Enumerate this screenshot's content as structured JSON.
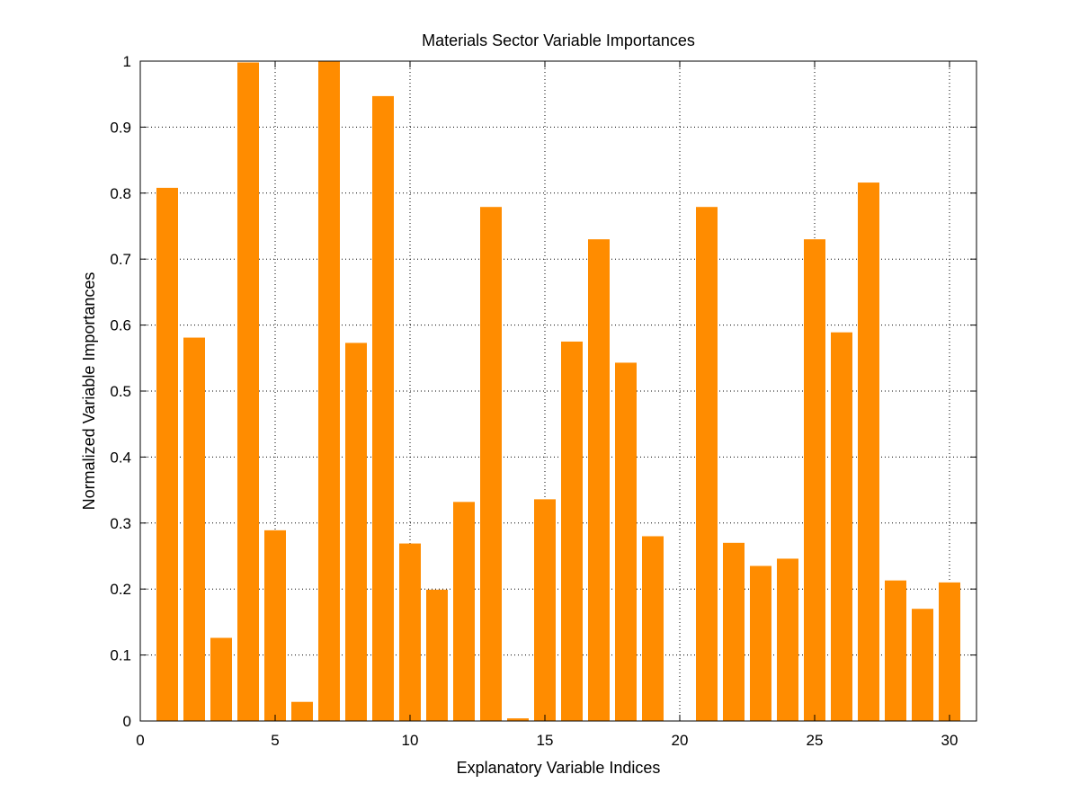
{
  "chart_data": {
    "type": "bar",
    "title": "Materials Sector Variable Importances",
    "xlabel": "Explanatory Variable Indices",
    "ylabel": "Normalized Variable Importances",
    "x": [
      1,
      2,
      3,
      4,
      5,
      6,
      7,
      8,
      9,
      10,
      11,
      12,
      13,
      14,
      15,
      16,
      17,
      18,
      19,
      20,
      21,
      22,
      23,
      24,
      25,
      26,
      27,
      28,
      29,
      30
    ],
    "values": [
      0.808,
      0.581,
      0.126,
      0.998,
      0.289,
      0.029,
      1.0,
      0.573,
      0.947,
      0.269,
      0.199,
      0.332,
      0.779,
      0.004,
      0.336,
      0.575,
      0.73,
      0.543,
      0.28,
      0.0,
      0.779,
      0.27,
      0.235,
      0.246,
      0.73,
      0.589,
      0.816,
      0.213,
      0.17,
      0.21
    ],
    "xlim": [
      0,
      31
    ],
    "ylim": [
      0,
      1
    ],
    "xticks": [
      0,
      5,
      10,
      15,
      20,
      25,
      30
    ],
    "yticks": [
      0,
      0.1,
      0.2,
      0.3,
      0.4,
      0.5,
      0.6,
      0.7,
      0.8,
      0.9,
      1
    ],
    "xtick_labels": [
      "0",
      "5",
      "10",
      "15",
      "20",
      "25",
      "30"
    ],
    "ytick_labels": [
      "0",
      "0.1",
      "0.2",
      "0.3",
      "0.4",
      "0.5",
      "0.6",
      "0.7",
      "0.8",
      "0.9",
      "1"
    ],
    "grid": true,
    "bar_color": "#ff8c00",
    "bar_width": 0.8
  }
}
